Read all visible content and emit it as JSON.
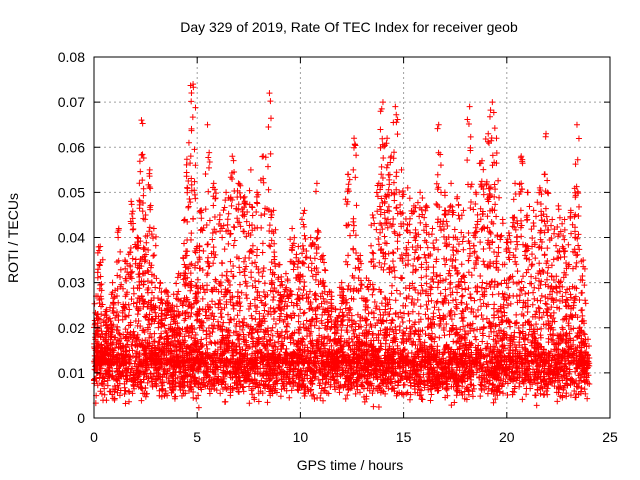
{
  "chart_data": {
    "type": "scatter",
    "title": "Day 329 of 2019, Rate Of TEC Index for receiver geob",
    "xlabel": "GPS time / hours",
    "ylabel": "ROTI / TECUs",
    "xlim": [
      0,
      25
    ],
    "ylim": [
      0,
      0.08
    ],
    "x_ticks": [
      0,
      5,
      10,
      15,
      20,
      25
    ],
    "y_ticks": [
      0,
      0.01,
      0.02,
      0.03,
      0.04,
      0.05,
      0.06,
      0.07,
      0.08
    ],
    "x_tick_labels": [
      "0",
      "5",
      "10",
      "15",
      "20",
      "25"
    ],
    "y_tick_labels": [
      "0",
      "0.01",
      "0.02",
      "0.03",
      "0.04",
      "0.05",
      "0.06",
      "0.07",
      "0.08"
    ],
    "grid": true,
    "marker": "plus",
    "color": "#ff0000",
    "series": [
      {
        "x_range": [
          0,
          24
        ],
        "baseline_typical": 0.01,
        "baseline_range": [
          0.002,
          0.018
        ],
        "x": [
          0.1,
          0.3,
          0.6,
          0.9,
          1.2,
          1.5,
          1.8,
          2.1,
          2.3,
          2.5,
          2.7,
          2.9,
          3.2,
          3.5,
          3.8,
          4.1,
          4.4,
          4.6,
          4.8,
          5.0,
          5.2,
          5.5,
          5.8,
          6.1,
          6.4,
          6.7,
          7.0,
          7.3,
          7.6,
          7.9,
          8.2,
          8.5,
          8.7,
          9.0,
          9.3,
          9.6,
          9.9,
          10.2,
          10.5,
          10.8,
          11.1,
          11.4,
          11.7,
          12.0,
          12.3,
          12.6,
          12.9,
          13.2,
          13.5,
          13.8,
          14.0,
          14.2,
          14.4,
          14.6,
          14.9,
          15.2,
          15.5,
          15.8,
          16.1,
          16.4,
          16.7,
          17.0,
          17.3,
          17.6,
          17.9,
          18.2,
          18.5,
          18.8,
          19.1,
          19.3,
          19.5,
          19.8,
          20.1,
          20.4,
          20.7,
          21.0,
          21.3,
          21.6,
          21.9,
          22.2,
          22.5,
          22.8,
          23.1,
          23.4,
          23.7
        ],
        "y": [
          0.027,
          0.038,
          0.024,
          0.03,
          0.042,
          0.035,
          0.048,
          0.04,
          0.066,
          0.045,
          0.055,
          0.042,
          0.03,
          0.028,
          0.025,
          0.032,
          0.044,
          0.061,
          0.074,
          0.038,
          0.046,
          0.065,
          0.052,
          0.045,
          0.05,
          0.058,
          0.052,
          0.049,
          0.055,
          0.05,
          0.058,
          0.072,
          0.046,
          0.034,
          0.032,
          0.042,
          0.038,
          0.046,
          0.04,
          0.052,
          0.036,
          0.028,
          0.024,
          0.03,
          0.054,
          0.062,
          0.036,
          0.031,
          0.045,
          0.052,
          0.07,
          0.062,
          0.058,
          0.069,
          0.055,
          0.051,
          0.047,
          0.05,
          0.047,
          0.042,
          0.065,
          0.05,
          0.052,
          0.049,
          0.046,
          0.069,
          0.05,
          0.057,
          0.063,
          0.07,
          0.062,
          0.044,
          0.041,
          0.052,
          0.058,
          0.05,
          0.046,
          0.051,
          0.063,
          0.044,
          0.047,
          0.044,
          0.046,
          0.065,
          0.035
        ]
      }
    ]
  }
}
